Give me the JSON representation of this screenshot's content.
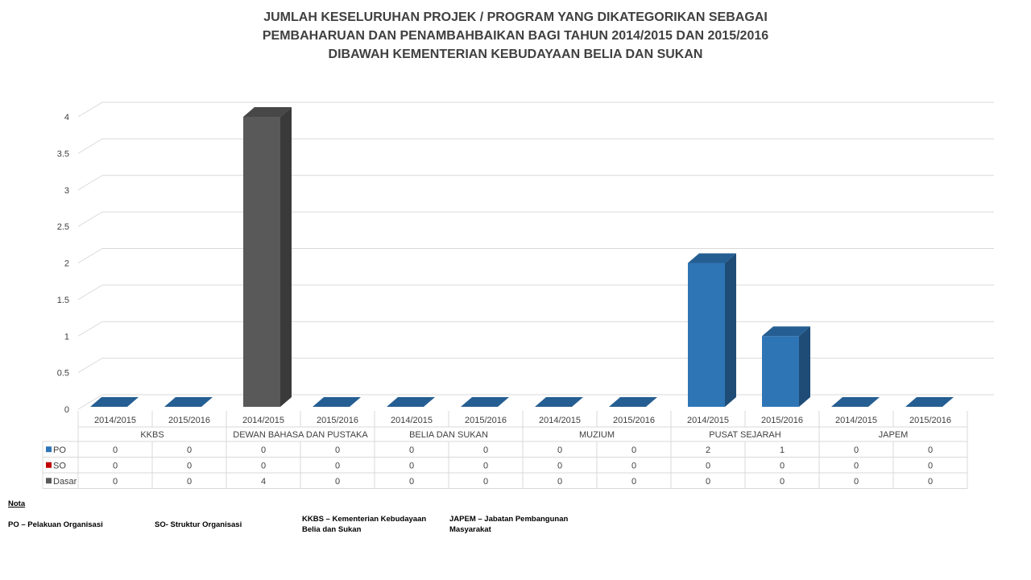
{
  "title_lines": [
    "JUMLAH KESELURUHAN PROJEK / PROGRAM YANG DIKATEGORIKAN SEBAGAI",
    "PEMBAHARUAN DAN PENAMBAHBAIKAN BAGI TAHUN 2014/2015 DAN 2015/2016",
    "DIBAWAH KEMENTERIAN KEBUDAYAAN BELIA DAN SUKAN"
  ],
  "chart_data": {
    "type": "bar",
    "title": "JUMLAH KESELURUHAN PROJEK / PROGRAM YANG DIKATEGORIKAN SEBAGAI PEMBAHARUAN DAN PENAMBAHBAIKAN BAGI TAHUN 2014/2015 DAN 2015/2016 DIBAWAH KEMENTERIAN KEBUDAYAAN BELIA DAN SUKAN",
    "style": "3d-clustered-column-with-data-table",
    "ylim": [
      0,
      4
    ],
    "yticks": [
      "0",
      "0.5",
      "1",
      "1.5",
      "2",
      "2.5",
      "3",
      "3.5",
      "4"
    ],
    "grid": true,
    "groups": [
      "KKBS",
      "DEWAN BAHASA DAN PUSTAKA",
      "BELIA DAN SUKAN",
      "MUZIUM",
      "PUSAT SEJARAH",
      "JAPEM"
    ],
    "subcategories": [
      "2014/2015",
      "2015/2016"
    ],
    "series": [
      {
        "name": "PO",
        "color": "#2e75b6",
        "values": [
          0,
          0,
          0,
          0,
          0,
          0,
          0,
          0,
          2,
          1,
          0,
          0
        ]
      },
      {
        "name": "SO",
        "color": "#c00000",
        "values": [
          0,
          0,
          0,
          0,
          0,
          0,
          0,
          0,
          0,
          0,
          0,
          0
        ]
      },
      {
        "name": "Dasar",
        "color": "#595959",
        "values": [
          0,
          0,
          4,
          0,
          0,
          0,
          0,
          0,
          0,
          0,
          0,
          0
        ]
      }
    ]
  },
  "notes": {
    "heading": "Nota",
    "po": "PO – Pelakuan Organisasi",
    "so": "SO- Struktur Organisasi",
    "kkbs": "KKBS – Kementerian Kebudayaan Belia dan Sukan",
    "japem": "JAPEM – Jabatan Pembangunan Masyarakat"
  }
}
